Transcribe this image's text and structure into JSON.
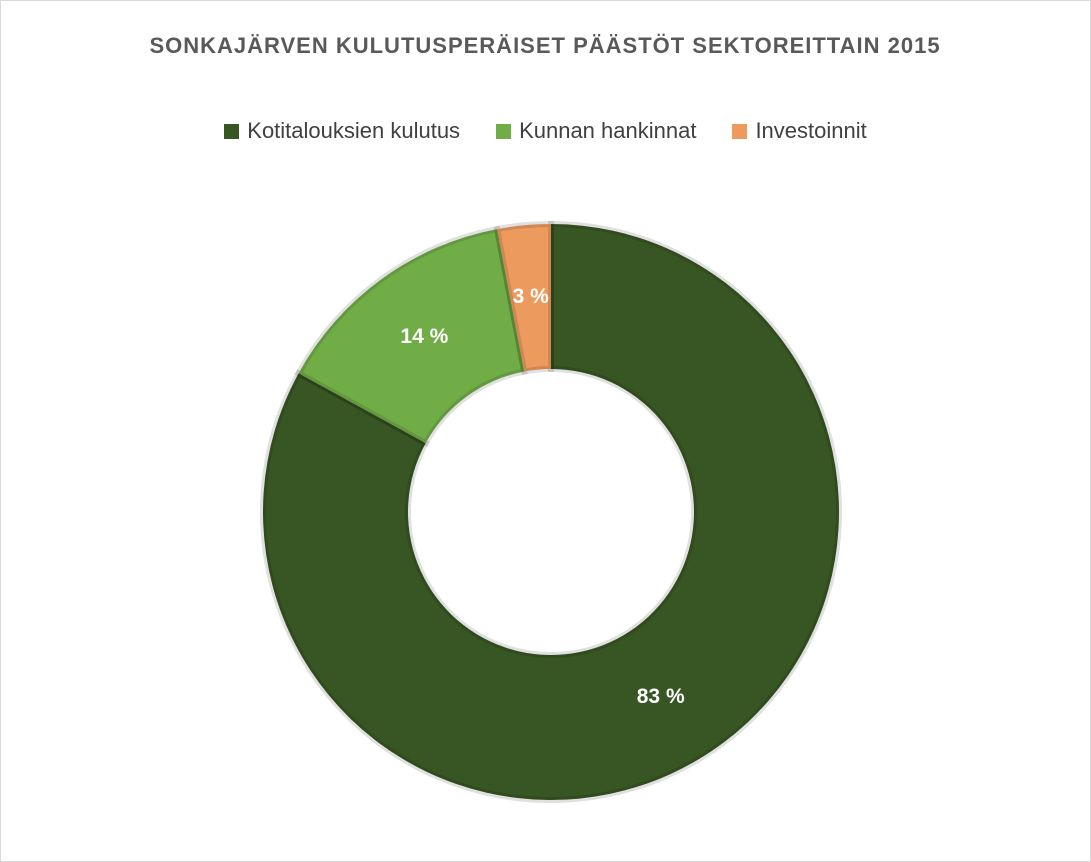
{
  "chart_data": {
    "type": "donut",
    "title": "SONKAJÄRVEN KULUTUSPERÄISET PÄÄSTÖT SEKTOREITTAIN 2015",
    "categories": [
      "Kotitalouksien kulutus",
      "Kunnan hankinnat",
      "Investoinnit"
    ],
    "values": [
      83,
      14,
      3
    ],
    "value_labels": [
      "83 %",
      "14 %",
      "3 %"
    ],
    "colors": [
      "#375623",
      "#70ad47",
      "#ed9a5e"
    ],
    "legend": "top"
  }
}
